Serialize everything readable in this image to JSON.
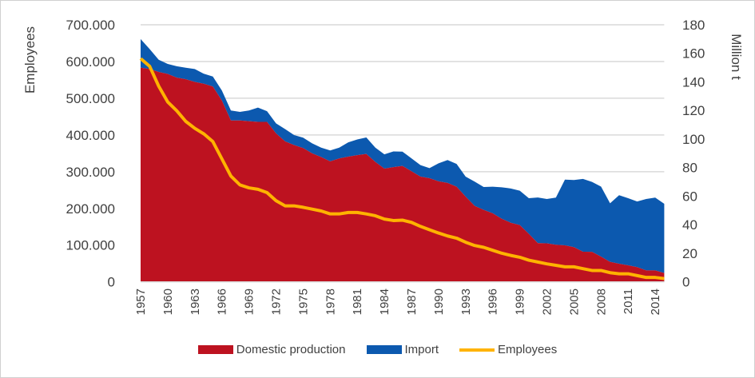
{
  "chart_data": {
    "type": "area",
    "stacked": true,
    "x": [
      1957,
      1958,
      1959,
      1960,
      1961,
      1962,
      1963,
      1964,
      1965,
      1966,
      1967,
      1968,
      1969,
      1970,
      1971,
      1972,
      1973,
      1974,
      1975,
      1976,
      1977,
      1978,
      1979,
      1980,
      1981,
      1982,
      1983,
      1984,
      1985,
      1986,
      1987,
      1988,
      1989,
      1990,
      1991,
      1992,
      1993,
      1994,
      1995,
      1996,
      1997,
      1998,
      1999,
      2000,
      2001,
      2002,
      2003,
      2004,
      2005,
      2006,
      2007,
      2008,
      2009,
      2010,
      2011,
      2012,
      2013,
      2014,
      2015
    ],
    "x_tick_labels": [
      "1957",
      "1960",
      "1963",
      "1966",
      "1969",
      "1972",
      "1975",
      "1978",
      "1981",
      "1984",
      "1987",
      "1990",
      "1993",
      "1996",
      "1999",
      "2002",
      "2005",
      "2008",
      "2011",
      "2014"
    ],
    "series": [
      {
        "name": "Domestic production",
        "axis": "right",
        "type": "area",
        "color": "#BD1220",
        "values": [
          150,
          149,
          147,
          145.6,
          143,
          141.9,
          140,
          138.7,
          136.8,
          127,
          113,
          113,
          112.5,
          112,
          112,
          104,
          98.4,
          95.8,
          93.7,
          90,
          87.4,
          84.4,
          86.4,
          87.7,
          88.7,
          89.6,
          84,
          79.3,
          80.3,
          81.2,
          77.5,
          73.7,
          72.6,
          70.4,
          69.3,
          66.6,
          59.7,
          53.2,
          50.4,
          48,
          44.2,
          41.4,
          39.8,
          33.6,
          27.1,
          27,
          26,
          25.6,
          24.3,
          21.1,
          21,
          17.7,
          14,
          12.7,
          11.6,
          10.3,
          8,
          8,
          6.2
        ]
      },
      {
        "name": "Import",
        "axis": "right",
        "type": "area",
        "color": "#0C59AF",
        "values": [
          20,
          14,
          8.5,
          7,
          8,
          8,
          9,
          7,
          7,
          7,
          7,
          6,
          7.5,
          10,
          7.5,
          7,
          8.6,
          7,
          7.3,
          7,
          6.6,
          7.6,
          7.6,
          10,
          11,
          11.5,
          10,
          10,
          11,
          10,
          9,
          8,
          7,
          12.6,
          16,
          16,
          14,
          17,
          16,
          18.6,
          22,
          24,
          24,
          25,
          32,
          31,
          33,
          46,
          47,
          51,
          49,
          49,
          41,
          48,
          47,
          46,
          50,
          51,
          48.5
        ]
      },
      {
        "name": "Employees",
        "axis": "left",
        "type": "line",
        "color": "#FFB300",
        "values": [
          608000,
          587000,
          533000,
          490000,
          466000,
          437000,
          418000,
          403000,
          382000,
          335000,
          288000,
          264000,
          256000,
          252000,
          243000,
          221000,
          207000,
          207000,
          203000,
          198000,
          193000,
          185000,
          185000,
          189000,
          189000,
          185000,
          180000,
          171000,
          167000,
          168000,
          162000,
          151000,
          142000,
          133000,
          125000,
          119000,
          108000,
          99000,
          94000,
          86000,
          78000,
          72000,
          67000,
          59000,
          54000,
          49000,
          45000,
          41000,
          41000,
          36000,
          31000,
          31000,
          25000,
          22000,
          22000,
          17000,
          12000,
          12000,
          9000
        ]
      }
    ],
    "ylabel_left": "Employees",
    "ylabel_right": "Million t",
    "ylim_left": [
      0,
      700000
    ],
    "ylim_right": [
      0,
      180
    ],
    "left_tick_labels": [
      "0",
      "100.000",
      "200.000",
      "300.000",
      "400.000",
      "500.000",
      "600.000",
      "700.000"
    ],
    "right_tick_labels": [
      "0",
      "20",
      "40",
      "60",
      "80",
      "100",
      "120",
      "140",
      "160",
      "180"
    ],
    "grid": true,
    "legend": "bottom"
  }
}
